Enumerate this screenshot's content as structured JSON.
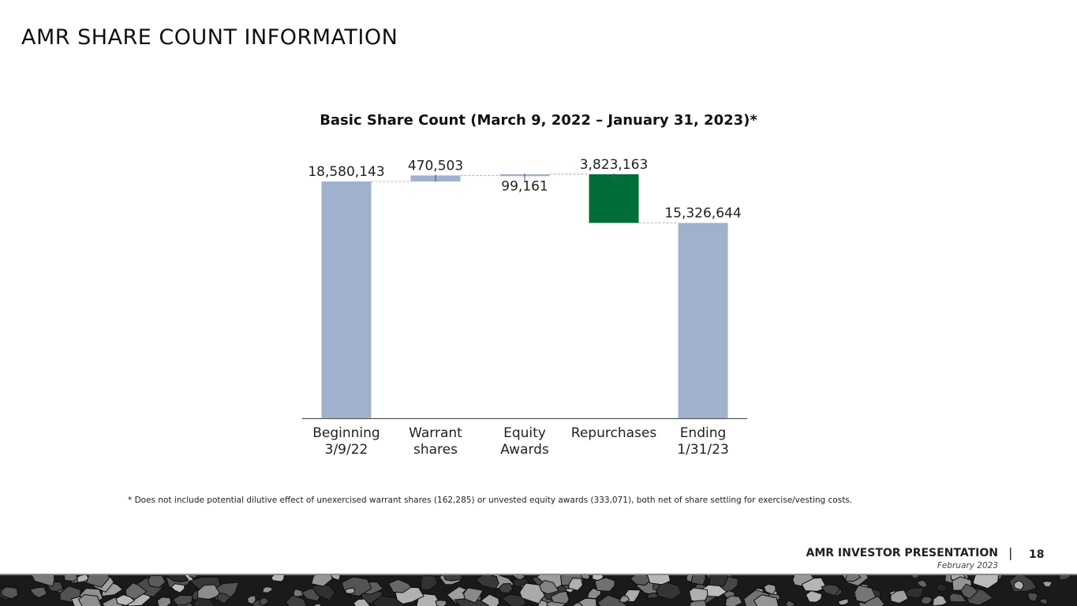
{
  "slide": {
    "title": "AMR SHARE COUNT INFORMATION",
    "footnote": "* Does not include potential dilutive effect of unexercised warrant shares (162,285) or unvested equity awards (333,071), both net of share settling for exercise/vesting costs.",
    "footer": {
      "brand": "AMR INVESTOR PRESENTATION",
      "separator": "|",
      "page": "18",
      "date": "February 2023"
    }
  },
  "colors": {
    "total_bar": "#9fb1cd",
    "increase_bar": "#9fb1cd",
    "decrease_bar": "#006e36",
    "connector": "#999999",
    "axis": "#555555"
  },
  "chart_data": {
    "type": "bar",
    "subtype": "waterfall",
    "title": "Basic Share Count (March 9, 2022 – January 31, 2023)*",
    "categories": [
      "Beginning\n3/9/22",
      "Warrant\nshares",
      "Equity\nAwards",
      "Repurchases",
      "Ending\n1/31/23"
    ],
    "bars": [
      {
        "kind": "total",
        "value": 18580143,
        "label": "18,580,143"
      },
      {
        "kind": "increase",
        "value": 470503,
        "label": "470,503"
      },
      {
        "kind": "increase",
        "value": 99161,
        "label": "99,161"
      },
      {
        "kind": "decrease",
        "value": 3823163,
        "label": "3,823,163"
      },
      {
        "kind": "total",
        "value": 15326644,
        "label": "15,326,644"
      }
    ],
    "ylim": [
      0,
      19200000
    ],
    "grid": false,
    "legend": "none",
    "xlabel": "",
    "ylabel": ""
  }
}
